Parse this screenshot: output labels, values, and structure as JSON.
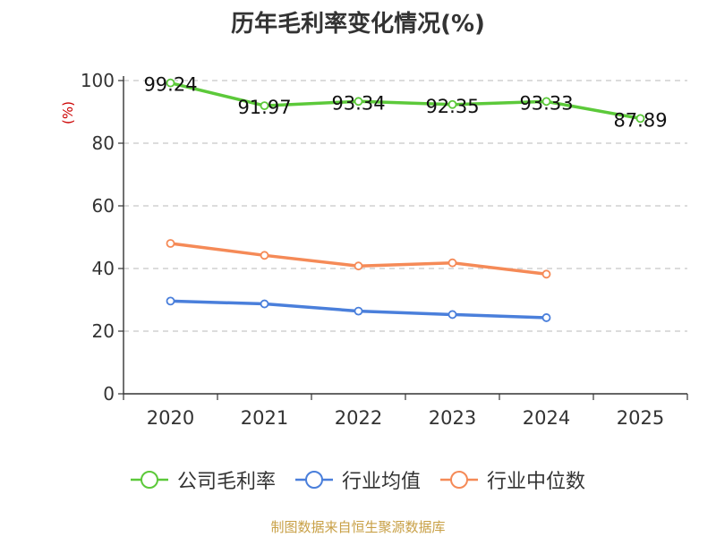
{
  "chart_data": {
    "type": "line",
    "title": "历年毛利率变化情况(%)",
    "ylabel": "(%)",
    "xlabel": "",
    "categories": [
      "2020",
      "2021",
      "2022",
      "2023",
      "2024",
      "2025"
    ],
    "ylim": [
      0,
      100
    ],
    "yticks": [
      0,
      20,
      40,
      60,
      80,
      100
    ],
    "grid": "horizontal-dashed",
    "legend_position": "bottom",
    "series": [
      {
        "name": "公司毛利率",
        "color": "#5cc93a",
        "values": [
          99.24,
          91.97,
          93.34,
          92.35,
          93.33,
          87.89
        ],
        "labels": [
          "99.24",
          "91.97",
          "93.34",
          "92.35",
          "93.33",
          "87.89"
        ],
        "show_labels": true
      },
      {
        "name": "行业均值",
        "color": "#4a7fdb",
        "values": [
          29.6,
          28.7,
          26.4,
          25.3,
          24.3,
          null
        ],
        "show_labels": false
      },
      {
        "name": "行业中位数",
        "color": "#f58a57",
        "values": [
          48.0,
          44.2,
          40.8,
          41.8,
          38.2,
          null
        ],
        "show_labels": false
      }
    ],
    "source": "制图数据来自恒生聚源数据库"
  }
}
